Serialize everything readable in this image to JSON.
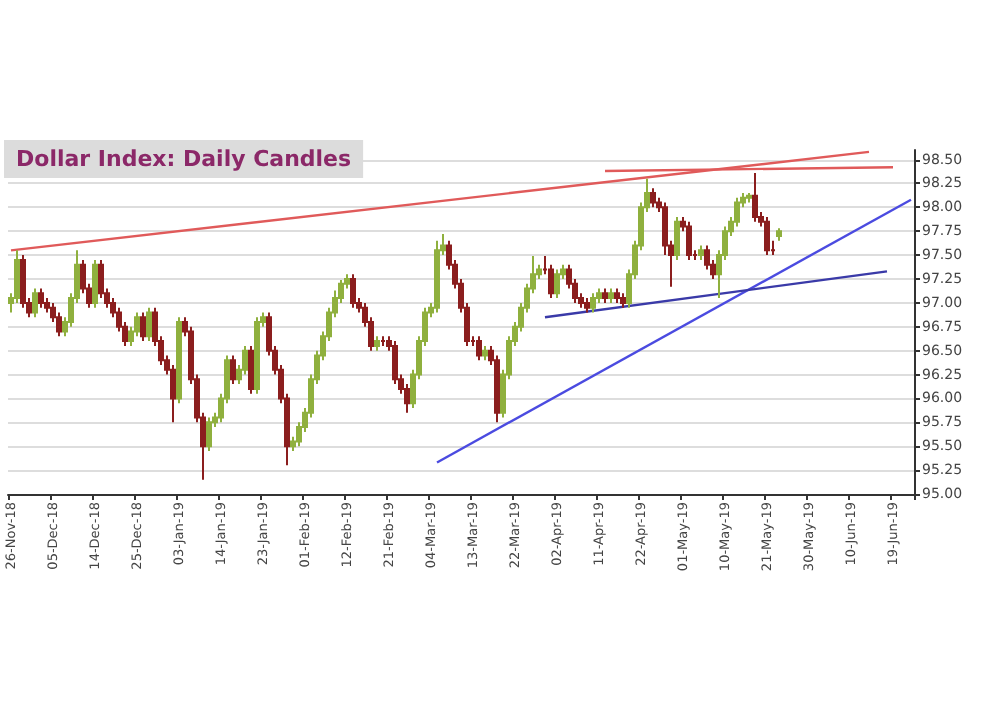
{
  "chart_data": {
    "type": "candlestick",
    "title": "Dollar Index: Daily Candles",
    "categories": [
      "26-Nov-18",
      null,
      null,
      null,
      null,
      null,
      null,
      "05-Dec-18",
      null,
      null,
      null,
      null,
      null,
      null,
      "14-Dec-18",
      null,
      null,
      null,
      null,
      null,
      null,
      "25-Dec-18",
      null,
      null,
      null,
      null,
      null,
      null,
      "03-Jan-19",
      null,
      null,
      null,
      null,
      null,
      null,
      "14-Jan-19",
      null,
      null,
      null,
      null,
      null,
      null,
      "23-Jan-19",
      null,
      null,
      null,
      null,
      null,
      null,
      "01-Feb-19",
      null,
      null,
      null,
      null,
      null,
      null,
      "12-Feb-19",
      null,
      null,
      null,
      null,
      null,
      null,
      "21-Feb-19",
      null,
      null,
      null,
      null,
      null,
      null,
      "04-Mar-19",
      null,
      null,
      null,
      null,
      null,
      null,
      "13-Mar-19",
      null,
      null,
      null,
      null,
      null,
      null,
      "22-Mar-19",
      null,
      null,
      null,
      null,
      null,
      null,
      "02-Apr-19",
      null,
      null,
      null,
      null,
      null,
      null,
      "11-Apr-19",
      null,
      null,
      null,
      null,
      null,
      null,
      "22-Apr-19",
      null,
      null,
      null,
      null,
      null,
      null,
      "01-May-19",
      null,
      null,
      null,
      null,
      null,
      null,
      "10-May-19",
      null,
      null,
      null,
      null,
      null,
      null,
      "21-May-19",
      null,
      null,
      null,
      null,
      null,
      null,
      "30-May-19",
      null,
      null,
      null,
      null,
      null,
      null,
      "10-Jun-19",
      null,
      null,
      null,
      null,
      null,
      null,
      "19-Jun-19",
      null,
      null,
      null
    ],
    "ohlc": [
      [
        97.0,
        97.1,
        96.9,
        97.05
      ],
      [
        97.05,
        97.55,
        97.0,
        97.45
      ],
      [
        97.45,
        97.5,
        96.95,
        97.0
      ],
      [
        97.0,
        97.05,
        96.85,
        96.9
      ],
      [
        96.9,
        97.15,
        96.85,
        97.1
      ],
      [
        97.1,
        97.15,
        96.95,
        97.0
      ],
      [
        97.0,
        97.05,
        96.9,
        96.95
      ],
      [
        96.95,
        97.0,
        96.8,
        96.85
      ],
      [
        96.85,
        96.9,
        96.65,
        96.7
      ],
      [
        96.7,
        96.85,
        96.65,
        96.8
      ],
      [
        96.8,
        97.1,
        96.75,
        97.05
      ],
      [
        97.05,
        97.55,
        97.0,
        97.4
      ],
      [
        97.4,
        97.45,
        97.1,
        97.15
      ],
      [
        97.15,
        97.2,
        96.95,
        97.0
      ],
      [
        97.0,
        97.45,
        96.95,
        97.4
      ],
      [
        97.4,
        97.45,
        97.05,
        97.1
      ],
      [
        97.1,
        97.15,
        96.95,
        97.0
      ],
      [
        97.0,
        97.05,
        96.85,
        96.9
      ],
      [
        96.9,
        96.95,
        96.7,
        96.75
      ],
      [
        96.75,
        96.8,
        96.55,
        96.6
      ],
      [
        96.6,
        96.75,
        96.55,
        96.7
      ],
      [
        96.7,
        96.9,
        96.65,
        96.85
      ],
      [
        96.85,
        96.9,
        96.6,
        96.65
      ],
      [
        96.65,
        96.95,
        96.6,
        96.9
      ],
      [
        96.9,
        96.95,
        96.55,
        96.6
      ],
      [
        96.6,
        96.65,
        96.35,
        96.4
      ],
      [
        96.4,
        96.45,
        96.25,
        96.3
      ],
      [
        96.3,
        96.35,
        95.75,
        96.0
      ],
      [
        96.0,
        96.85,
        95.95,
        96.8
      ],
      [
        96.8,
        96.85,
        96.65,
        96.7
      ],
      [
        96.7,
        96.75,
        96.15,
        96.2
      ],
      [
        96.2,
        96.25,
        95.75,
        95.8
      ],
      [
        95.8,
        95.85,
        95.15,
        95.5
      ],
      [
        95.5,
        95.8,
        95.45,
        95.75
      ],
      [
        95.75,
        95.85,
        95.7,
        95.8
      ],
      [
        95.8,
        96.05,
        95.75,
        96.0
      ],
      [
        96.0,
        96.45,
        95.95,
        96.4
      ],
      [
        96.4,
        96.45,
        96.15,
        96.2
      ],
      [
        96.2,
        96.35,
        96.15,
        96.3
      ],
      [
        96.3,
        96.55,
        96.25,
        96.5
      ],
      [
        96.5,
        96.55,
        96.05,
        96.1
      ],
      [
        96.1,
        96.85,
        96.05,
        96.8
      ],
      [
        96.8,
        96.9,
        96.75,
        96.85
      ],
      [
        96.85,
        96.9,
        96.45,
        96.5
      ],
      [
        96.5,
        96.55,
        96.25,
        96.3
      ],
      [
        96.3,
        96.35,
        95.95,
        96.0
      ],
      [
        96.0,
        96.05,
        95.3,
        95.5
      ],
      [
        95.5,
        95.6,
        95.45,
        95.55
      ],
      [
        95.55,
        95.75,
        95.5,
        95.7
      ],
      [
        95.7,
        95.9,
        95.65,
        95.85
      ],
      [
        95.85,
        96.25,
        95.8,
        96.2
      ],
      [
        96.2,
        96.5,
        96.15,
        96.45
      ],
      [
        96.45,
        96.7,
        96.4,
        96.65
      ],
      [
        96.65,
        96.95,
        96.6,
        96.9
      ],
      [
        96.9,
        97.13,
        96.85,
        97.05
      ],
      [
        97.05,
        97.24,
        97.0,
        97.2
      ],
      [
        97.2,
        97.3,
        97.15,
        97.25
      ],
      [
        97.25,
        97.3,
        96.95,
        97.0
      ],
      [
        97.0,
        97.05,
        96.9,
        96.95
      ],
      [
        96.95,
        97.0,
        96.75,
        96.8
      ],
      [
        96.8,
        96.85,
        96.5,
        96.55
      ],
      [
        96.55,
        96.65,
        96.5,
        96.6
      ],
      [
        96.6,
        96.65,
        96.55,
        96.6
      ],
      [
        96.6,
        96.65,
        96.5,
        96.55
      ],
      [
        96.55,
        96.6,
        96.15,
        96.2
      ],
      [
        96.2,
        96.25,
        96.05,
        96.1
      ],
      [
        96.1,
        96.15,
        95.85,
        95.95
      ],
      [
        95.95,
        96.3,
        95.9,
        96.25
      ],
      [
        96.25,
        96.65,
        96.2,
        96.6
      ],
      [
        96.6,
        96.95,
        96.55,
        96.9
      ],
      [
        96.9,
        97.0,
        96.85,
        96.95
      ],
      [
        96.95,
        97.65,
        96.9,
        97.55
      ],
      [
        97.55,
        97.72,
        97.5,
        97.6
      ],
      [
        97.6,
        97.65,
        97.35,
        97.4
      ],
      [
        97.4,
        97.45,
        97.15,
        97.2
      ],
      [
        97.2,
        97.25,
        96.9,
        96.95
      ],
      [
        96.95,
        97.0,
        96.55,
        96.6
      ],
      [
        96.6,
        96.65,
        96.55,
        96.6
      ],
      [
        96.6,
        96.65,
        96.4,
        96.45
      ],
      [
        96.45,
        96.55,
        96.4,
        96.5
      ],
      [
        96.5,
        96.55,
        96.35,
        96.4
      ],
      [
        96.4,
        96.45,
        95.75,
        95.85
      ],
      [
        95.85,
        96.3,
        95.8,
        96.25
      ],
      [
        96.25,
        96.65,
        96.2,
        96.6
      ],
      [
        96.6,
        96.8,
        96.55,
        96.75
      ],
      [
        96.75,
        97.0,
        96.7,
        96.95
      ],
      [
        96.95,
        97.2,
        96.9,
        97.15
      ],
      [
        97.15,
        97.49,
        97.1,
        97.3
      ],
      [
        97.3,
        97.4,
        97.25,
        97.35
      ],
      [
        97.35,
        97.49,
        97.3,
        97.35
      ],
      [
        97.35,
        97.4,
        97.05,
        97.1
      ],
      [
        97.1,
        97.35,
        97.05,
        97.3
      ],
      [
        97.3,
        97.4,
        97.25,
        97.35
      ],
      [
        97.35,
        97.4,
        97.15,
        97.2
      ],
      [
        97.2,
        97.25,
        97.0,
        97.05
      ],
      [
        97.05,
        97.1,
        96.95,
        97.0
      ],
      [
        97.0,
        97.05,
        96.9,
        96.95
      ],
      [
        96.95,
        97.1,
        96.9,
        97.05
      ],
      [
        97.05,
        97.15,
        97.0,
        97.1
      ],
      [
        97.1,
        97.15,
        97.0,
        97.05
      ],
      [
        97.05,
        97.15,
        97.0,
        97.1
      ],
      [
        97.1,
        97.15,
        97.0,
        97.05
      ],
      [
        97.05,
        97.1,
        96.95,
        97.0
      ],
      [
        97.0,
        97.35,
        96.95,
        97.3
      ],
      [
        97.3,
        97.65,
        97.25,
        97.6
      ],
      [
        97.6,
        98.05,
        97.55,
        98.0
      ],
      [
        98.0,
        98.3,
        97.95,
        98.15
      ],
      [
        98.15,
        98.2,
        98.0,
        98.05
      ],
      [
        98.05,
        98.1,
        97.95,
        98.0
      ],
      [
        98.0,
        98.05,
        97.5,
        97.6
      ],
      [
        97.6,
        97.65,
        97.17,
        97.5
      ],
      [
        97.5,
        97.9,
        97.45,
        97.85
      ],
      [
        97.85,
        97.9,
        97.75,
        97.8
      ],
      [
        97.8,
        97.85,
        97.45,
        97.5
      ],
      [
        97.5,
        97.55,
        97.45,
        97.5
      ],
      [
        97.5,
        97.6,
        97.45,
        97.55
      ],
      [
        97.55,
        97.6,
        97.35,
        97.4
      ],
      [
        97.4,
        97.45,
        97.25,
        97.3
      ],
      [
        97.3,
        97.55,
        97.05,
        97.5
      ],
      [
        97.5,
        97.8,
        97.45,
        97.75
      ],
      [
        97.75,
        97.9,
        97.7,
        97.85
      ],
      [
        97.85,
        98.1,
        97.8,
        98.05
      ],
      [
        98.05,
        98.15,
        98.0,
        98.1
      ],
      [
        98.1,
        98.15,
        98.05,
        98.12
      ],
      [
        98.12,
        98.36,
        97.85,
        97.9
      ],
      [
        97.9,
        97.95,
        97.8,
        97.85
      ],
      [
        97.85,
        97.9,
        97.5,
        97.55
      ],
      [
        97.55,
        97.65,
        97.5,
        97.55
      ],
      [
        97.7,
        97.78,
        97.65,
        97.75
      ],
      null,
      null,
      null,
      null,
      null,
      null,
      null,
      null,
      null,
      null,
      null,
      null,
      null,
      null,
      null,
      null,
      null,
      null,
      null,
      null,
      null,
      null
    ],
    "colors": [
      "#8fb03e",
      "#8fb03e",
      "#8b1e1e",
      "#8b1e1e",
      "#8fb03e",
      "#8b1e1e",
      "#8b1e1e",
      "#8b1e1e",
      "#8b1e1e",
      "#8fb03e",
      "#8fb03e",
      "#8fb03e",
      "#8b1e1e",
      "#8b1e1e",
      "#8fb03e",
      "#8b1e1e",
      "#8b1e1e",
      "#8b1e1e",
      "#8b1e1e",
      "#8b1e1e",
      "#8fb03e",
      "#8fb03e",
      "#8b1e1e",
      "#8fb03e",
      "#8b1e1e",
      "#8b1e1e",
      "#8b1e1e",
      "#8b1e1e",
      "#8fb03e",
      "#8b1e1e",
      "#8b1e1e",
      "#8b1e1e",
      "#8b1e1e",
      "#8fb03e",
      "#8fb03e",
      "#8fb03e",
      "#8fb03e",
      "#8b1e1e",
      "#8fb03e",
      "#8fb03e",
      "#8b1e1e",
      "#8fb03e",
      "#8fb03e",
      "#8b1e1e",
      "#8b1e1e",
      "#8b1e1e",
      "#8b1e1e",
      "#8fb03e",
      "#8fb03e",
      "#8fb03e",
      "#8fb03e",
      "#8fb03e",
      "#8fb03e",
      "#8fb03e",
      "#8fb03e",
      "#8fb03e",
      "#8fb03e",
      "#8b1e1e",
      "#8b1e1e",
      "#8b1e1e",
      "#8b1e1e",
      "#8fb03e",
      "#8b1e1e",
      "#8b1e1e",
      "#8b1e1e",
      "#8b1e1e",
      "#8b1e1e",
      "#8fb03e",
      "#8fb03e",
      "#8fb03e",
      "#8fb03e",
      "#8fb03e",
      "#8fb03e",
      "#8b1e1e",
      "#8b1e1e",
      "#8b1e1e",
      "#8b1e1e",
      "#8b1e1e",
      "#8b1e1e",
      "#8fb03e",
      "#8b1e1e",
      "#8b1e1e",
      "#8fb03e",
      "#8fb03e",
      "#8fb03e",
      "#8fb03e",
      "#8fb03e",
      "#8fb03e",
      "#8fb03e",
      "#8b1e1e",
      "#8b1e1e",
      "#8fb03e",
      "#8fb03e",
      "#8b1e1e",
      "#8b1e1e",
      "#8b1e1e",
      "#8b1e1e",
      "#8fb03e",
      "#8fb03e",
      "#8b1e1e",
      "#8fb03e",
      "#8b1e1e",
      "#8b1e1e",
      "#8fb03e",
      "#8fb03e",
      "#8fb03e",
      "#8fb03e",
      "#8b1e1e",
      "#8b1e1e",
      "#8b1e1e",
      "#8b1e1e",
      "#8fb03e",
      "#8b1e1e",
      "#8b1e1e",
      "#8b1e1e",
      "#8fb03e",
      "#8b1e1e",
      "#8b1e1e",
      "#8fb03e",
      "#8fb03e",
      "#8fb03e",
      "#8fb03e",
      "#8fb03e",
      "#8fb03e",
      "#8b1e1e",
      "#8b1e1e",
      "#8b1e1e",
      "#8b1e1e",
      "#8fb03e",
      null,
      null,
      null,
      null,
      null,
      null,
      null,
      null,
      null,
      null,
      null,
      null,
      null,
      null,
      null,
      null,
      null,
      null,
      null,
      null,
      null,
      null
    ],
    "series": [
      {
        "type": "line",
        "color": "#e05a5a",
        "values": [
          97.55,
          null,
          null,
          null,
          null,
          null,
          null,
          null,
          null,
          null,
          null,
          null,
          null,
          null,
          null,
          null,
          null,
          null,
          null,
          null,
          null,
          null,
          null,
          null,
          null,
          null,
          null,
          null,
          null,
          null,
          null,
          null,
          null,
          null,
          null,
          null,
          null,
          null,
          null,
          null,
          null,
          null,
          null,
          null,
          null,
          null,
          null,
          null,
          null,
          null,
          null,
          null,
          null,
          null,
          null,
          null,
          null,
          null,
          null,
          null,
          null,
          null,
          null,
          null,
          null,
          null,
          null,
          null,
          null,
          null,
          null,
          null,
          null,
          null,
          null,
          null,
          null,
          null,
          null,
          null,
          null,
          null,
          null,
          null,
          null,
          null,
          null,
          null,
          null,
          null,
          null,
          null,
          null,
          null,
          null,
          null,
          null,
          null,
          null,
          null,
          null,
          null,
          null,
          null,
          null,
          null,
          null,
          null,
          null,
          null,
          null,
          null,
          null,
          null,
          null,
          null,
          null,
          null,
          null,
          null,
          null,
          null,
          null,
          null,
          null,
          null,
          null,
          null,
          null,
          null,
          null,
          null,
          null,
          null,
          null,
          null,
          null,
          null,
          null,
          null,
          null,
          null,
          null,
          98.58,
          null,
          null,
          null,
          null,
          null,
          null,
          null
        ]
      },
      {
        "type": "line",
        "color": "#e05a5a",
        "values": [
          null,
          null,
          null,
          null,
          null,
          null,
          null,
          null,
          null,
          null,
          null,
          null,
          null,
          null,
          null,
          null,
          null,
          null,
          null,
          null,
          null,
          null,
          null,
          null,
          null,
          null,
          null,
          null,
          null,
          null,
          null,
          null,
          null,
          null,
          null,
          null,
          null,
          null,
          null,
          null,
          null,
          null,
          null,
          null,
          null,
          null,
          null,
          null,
          null,
          null,
          null,
          null,
          null,
          null,
          null,
          null,
          null,
          null,
          null,
          null,
          null,
          null,
          null,
          null,
          null,
          null,
          null,
          null,
          null,
          null,
          null,
          null,
          null,
          null,
          null,
          null,
          null,
          null,
          null,
          null,
          null,
          null,
          null,
          null,
          null,
          null,
          null,
          null,
          null,
          null,
          null,
          null,
          null,
          null,
          null,
          null,
          null,
          null,
          null,
          98.38,
          null,
          null,
          null,
          null,
          null,
          null,
          null,
          null,
          null,
          null,
          null,
          null,
          null,
          null,
          null,
          null,
          null,
          null,
          null,
          null,
          null,
          null,
          null,
          null,
          null,
          null,
          null,
          null,
          null,
          null,
          null,
          null,
          null,
          null,
          null,
          null,
          null,
          null,
          null,
          null,
          null,
          null,
          null,
          null,
          null,
          null,
          null,
          98.42,
          null,
          null,
          null
        ]
      },
      {
        "type": "line",
        "color": "#4b4be0",
        "values": [
          null,
          null,
          null,
          null,
          null,
          null,
          null,
          null,
          null,
          null,
          null,
          null,
          null,
          null,
          null,
          null,
          null,
          null,
          null,
          null,
          null,
          null,
          null,
          null,
          null,
          null,
          null,
          null,
          null,
          null,
          null,
          null,
          null,
          null,
          null,
          null,
          null,
          null,
          null,
          null,
          null,
          null,
          null,
          null,
          null,
          null,
          null,
          null,
          null,
          null,
          null,
          null,
          null,
          null,
          null,
          null,
          null,
          null,
          null,
          null,
          null,
          null,
          null,
          null,
          null,
          null,
          null,
          null,
          null,
          null,
          null,
          95.33,
          null,
          null,
          null,
          null,
          null,
          null,
          null,
          null,
          null,
          null,
          null,
          null,
          null,
          null,
          null,
          null,
          null,
          null,
          null,
          null,
          null,
          null,
          null,
          null,
          null,
          null,
          null,
          null,
          null,
          null,
          null,
          null,
          null,
          null,
          null,
          null,
          null,
          null,
          null,
          null,
          null,
          null,
          null,
          null,
          null,
          null,
          null,
          null,
          null,
          null,
          null,
          null,
          null,
          null,
          null,
          null,
          null,
          null,
          null,
          null,
          null,
          null,
          null,
          null,
          null,
          null,
          null,
          null,
          null,
          null,
          null,
          null,
          null,
          null,
          null,
          null,
          null,
          null,
          98.08
        ]
      },
      {
        "type": "line",
        "color": "#3a3aa8",
        "values": [
          null,
          null,
          null,
          null,
          null,
          null,
          null,
          null,
          null,
          null,
          null,
          null,
          null,
          null,
          null,
          null,
          null,
          null,
          null,
          null,
          null,
          null,
          null,
          null,
          null,
          null,
          null,
          null,
          null,
          null,
          null,
          null,
          null,
          null,
          null,
          null,
          null,
          null,
          null,
          null,
          null,
          null,
          null,
          null,
          null,
          null,
          null,
          null,
          null,
          null,
          null,
          null,
          null,
          null,
          null,
          null,
          null,
          null,
          null,
          null,
          null,
          null,
          null,
          null,
          null,
          null,
          null,
          null,
          null,
          null,
          null,
          null,
          null,
          null,
          null,
          null,
          null,
          null,
          null,
          null,
          null,
          null,
          null,
          null,
          null,
          null,
          null,
          null,
          null,
          96.85,
          null,
          null,
          null,
          null,
          null,
          null,
          null,
          null,
          null,
          null,
          null,
          null,
          null,
          null,
          null,
          null,
          null,
          null,
          null,
          null,
          null,
          null,
          null,
          null,
          null,
          null,
          null,
          null,
          null,
          null,
          null,
          null,
          null,
          null,
          null,
          null,
          null,
          null,
          null,
          null,
          null,
          null,
          null,
          null,
          null,
          null,
          null,
          null,
          null,
          null,
          null,
          null,
          null,
          null,
          null,
          null,
          97.33,
          null,
          null,
          null,
          null
        ]
      }
    ],
    "ylim": [
      95,
      98.6
    ],
    "yticks": [
      {
        "value": 95,
        "label": "95.00"
      },
      {
        "value": 95.25,
        "label": "95.25"
      },
      {
        "value": 95.5,
        "label": "95.50"
      },
      {
        "value": 95.75,
        "label": "95.75"
      },
      {
        "value": 96,
        "label": "96.00"
      },
      {
        "value": 96.25,
        "label": "96.25"
      },
      {
        "value": 96.5,
        "label": "96.50"
      },
      {
        "value": 96.75,
        "label": "96.75"
      },
      {
        "value": 97,
        "label": "97.00"
      },
      {
        "value": 97.25,
        "label": "97.25"
      },
      {
        "value": 97.5,
        "label": "97.50"
      },
      {
        "value": 97.75,
        "label": "97.75"
      },
      {
        "value": 98,
        "label": "98.00"
      },
      {
        "value": 98.25,
        "label": "98.25"
      },
      {
        "value": 98.5,
        "label": "98.50"
      }
    ],
    "grid": "y"
  }
}
